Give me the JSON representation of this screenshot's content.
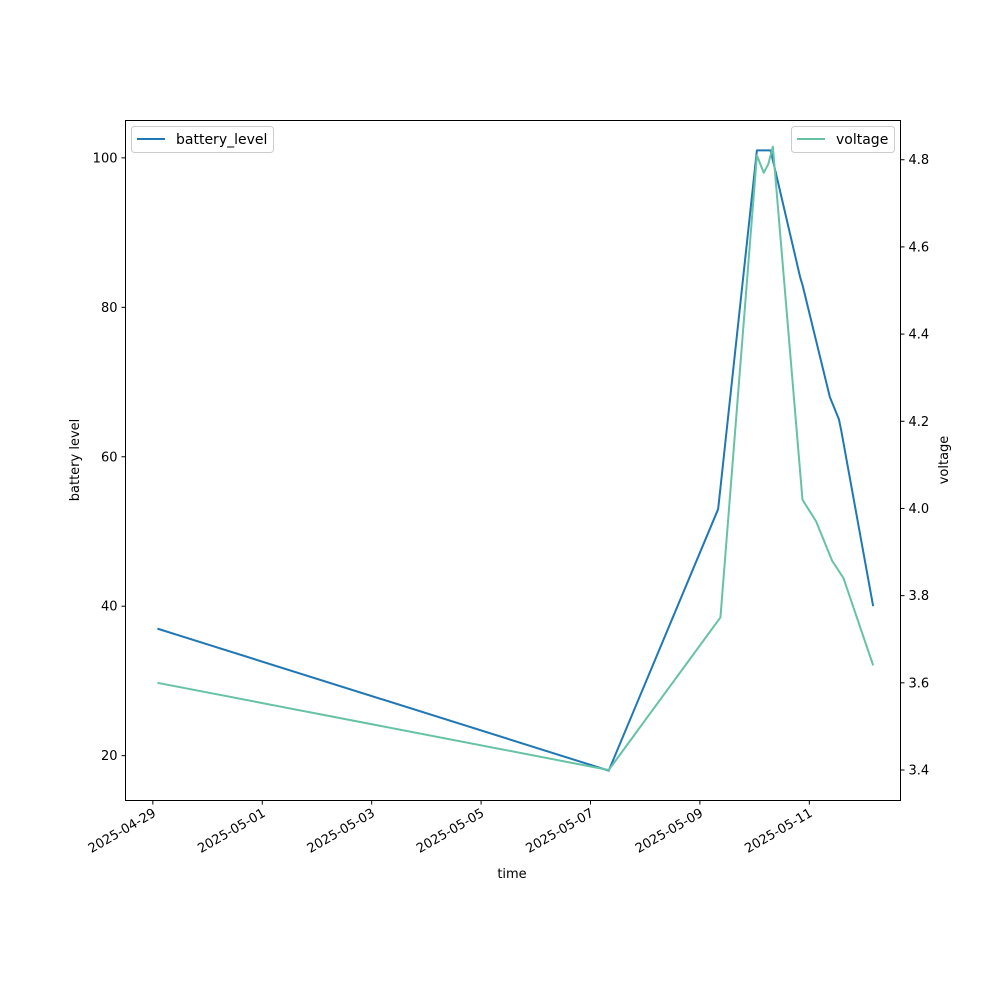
{
  "chart_data": {
    "type": "line",
    "xlabel": "time",
    "ylabel_left": "battery level",
    "ylabel_right": "voltage",
    "x_ticks": [
      "2025-04-29",
      "2025-05-01",
      "2025-05-03",
      "2025-05-05",
      "2025-05-07",
      "2025-05-09",
      "2025-05-11"
    ],
    "y_left_ticks": [
      "20",
      "40",
      "60",
      "80",
      "100"
    ],
    "y_right_ticks": [
      "3.4",
      "3.6",
      "3.8",
      "4.0",
      "4.2",
      "4.4",
      "4.6",
      "4.8"
    ],
    "xlim": [
      "2025-04-28T12:00",
      "2025-05-12T16:00"
    ],
    "ylim_left": [
      14,
      105
    ],
    "ylim_right": [
      3.33,
      4.89
    ],
    "grid": false,
    "series": [
      {
        "name": "battery_level",
        "axis": "left",
        "color": "#1f77b4",
        "legend_position": "upper left",
        "points": [
          [
            "2025-04-29T02:00",
            37
          ],
          [
            "2025-05-07T08:00",
            18
          ],
          [
            "2025-05-09T08:00",
            53
          ],
          [
            "2025-05-10T01:00",
            101
          ],
          [
            "2025-05-10T07:00",
            101
          ],
          [
            "2025-05-10T20:00",
            84
          ],
          [
            "2025-05-10T21:00",
            83
          ],
          [
            "2025-05-11T09:00",
            68
          ],
          [
            "2025-05-11T13:00",
            65
          ],
          [
            "2025-05-11T14:00",
            63.5
          ],
          [
            "2025-05-12T04:00",
            40
          ]
        ]
      },
      {
        "name": "voltage",
        "axis": "right",
        "color": "#66c2a5",
        "legend_position": "upper right",
        "points": [
          [
            "2025-04-29T02:00",
            3.6
          ],
          [
            "2025-05-07T08:00",
            3.4
          ],
          [
            "2025-05-09T09:00",
            3.75
          ],
          [
            "2025-05-10T01:00",
            4.81
          ],
          [
            "2025-05-10T04:00",
            4.77
          ],
          [
            "2025-05-10T06:00",
            4.79
          ],
          [
            "2025-05-10T08:00",
            4.83
          ],
          [
            "2025-05-10T21:00",
            4.02
          ],
          [
            "2025-05-11T03:00",
            3.97
          ],
          [
            "2025-05-11T10:00",
            3.88
          ],
          [
            "2025-05-11T15:00",
            3.84
          ],
          [
            "2025-05-12T04:00",
            3.64
          ]
        ]
      }
    ]
  }
}
